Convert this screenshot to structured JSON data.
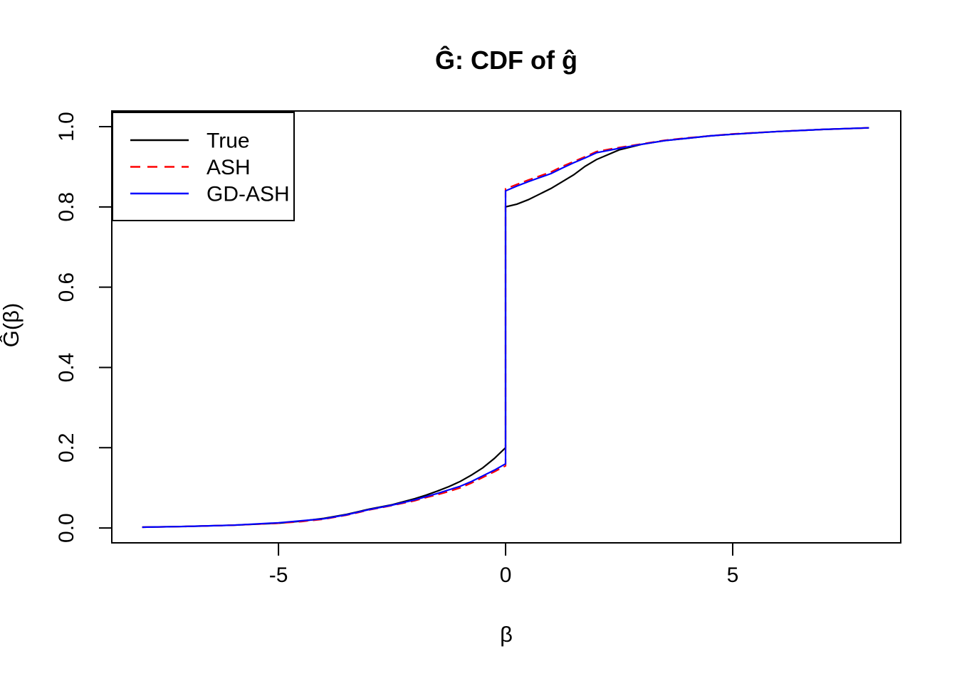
{
  "chart_data": {
    "type": "line",
    "title": "Ĝ: CDF of ĝ",
    "xlabel": "β",
    "ylabel": "Ĝ(β)",
    "xlim": [
      -8.67,
      8.7
    ],
    "ylim": [
      -0.037,
      1.039
    ],
    "grid": false,
    "xticks": {
      "values": [
        -5,
        0,
        5
      ],
      "labels": [
        "-5",
        "0",
        "5"
      ]
    },
    "yticks": {
      "values": [
        0.0,
        0.2,
        0.4,
        0.6,
        0.8,
        1.0
      ],
      "labels": [
        "0.0",
        "0.2",
        "0.4",
        "0.6",
        "0.8",
        "1.0"
      ]
    },
    "jump_note": "All CDFs have a jump discontinuity at x=0: True 0.20 to 0.80, ASH 0.155 to 0.845, GD-ASH 0.16 to 0.84",
    "x": [
      -8,
      -7,
      -6,
      -5,
      -4.5,
      -4,
      -3.5,
      -3,
      -2.5,
      -2,
      -1.75,
      -1.5,
      -1.25,
      -1,
      -0.75,
      -0.5,
      -0.25,
      0,
      0,
      0.25,
      0.5,
      0.75,
      1,
      1.25,
      1.5,
      1.75,
      2,
      2.5,
      3,
      3.5,
      4,
      4.5,
      5,
      6,
      7,
      8
    ],
    "series": [
      {
        "name": "True",
        "color": "#000000",
        "dashed": false,
        "values": [
          0.002,
          0.004,
          0.007,
          0.012,
          0.017,
          0.024,
          0.034,
          0.047,
          0.058,
          0.073,
          0.082,
          0.092,
          0.103,
          0.116,
          0.132,
          0.15,
          0.173,
          0.2,
          0.8,
          0.807,
          0.818,
          0.832,
          0.846,
          0.863,
          0.88,
          0.901,
          0.918,
          0.942,
          0.956,
          0.965,
          0.971,
          0.977,
          0.981,
          0.988,
          0.993,
          0.997
        ]
      },
      {
        "name": "ASH",
        "color": "#FF0000",
        "dashed": true,
        "values": [
          0.002,
          0.004,
          0.007,
          0.012,
          0.016,
          0.022,
          0.032,
          0.045,
          0.056,
          0.068,
          0.076,
          0.083,
          0.091,
          0.1,
          0.112,
          0.126,
          0.14,
          0.155,
          0.845,
          0.856,
          0.867,
          0.877,
          0.887,
          0.901,
          0.913,
          0.925,
          0.938,
          0.948,
          0.957,
          0.966,
          0.972,
          0.977,
          0.982,
          0.988,
          0.993,
          0.997
        ]
      },
      {
        "name": "GD-ASH",
        "color": "#0000FF",
        "dashed": false,
        "values": [
          0.002,
          0.004,
          0.007,
          0.013,
          0.018,
          0.023,
          0.033,
          0.046,
          0.057,
          0.07,
          0.078,
          0.086,
          0.095,
          0.104,
          0.116,
          0.13,
          0.144,
          0.16,
          0.84,
          0.852,
          0.863,
          0.873,
          0.883,
          0.897,
          0.91,
          0.922,
          0.935,
          0.946,
          0.956,
          0.965,
          0.971,
          0.977,
          0.981,
          0.988,
          0.993,
          0.997
        ]
      }
    ],
    "legend": {
      "position": "topleft",
      "entries": [
        {
          "label": "True",
          "color": "#000000",
          "dashed": false
        },
        {
          "label": "ASH",
          "color": "#FF0000",
          "dashed": true
        },
        {
          "label": "GD-ASH",
          "color": "#0000FF",
          "dashed": false
        }
      ]
    }
  }
}
